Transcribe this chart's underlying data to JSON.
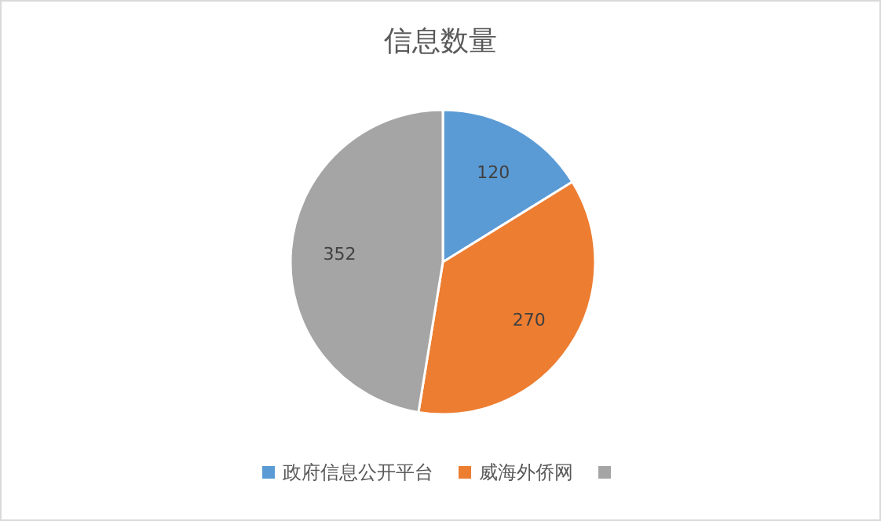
{
  "chart_data": {
    "type": "pie",
    "title": "信息数量",
    "categories": [
      "政府信息公开平台",
      "威海外侨网",
      null
    ],
    "values": [
      120,
      270,
      352
    ],
    "colors": [
      "#5b9bd5",
      "#ed7d31",
      "#a5a5a5"
    ],
    "data_labels": true,
    "legend": "bottom"
  }
}
